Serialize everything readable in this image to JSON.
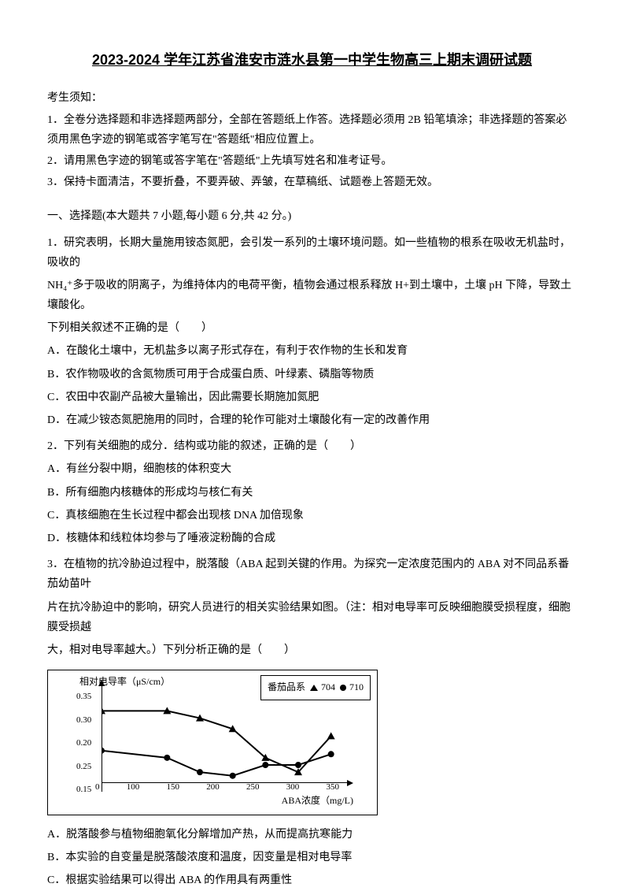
{
  "title": "2023-2024 学年江苏省淮安市涟水县第一中学生物高三上期末调研试题",
  "instructions": {
    "header": "考生须知：",
    "rule1": "1．全卷分选择题和非选择题两部分，全部在答题纸上作答。选择题必须用 2B 铅笔填涂；非选择题的答案必须用黑色字迹的钢笔或答字笔写在\"答题纸\"相应位置上。",
    "rule2": "2．请用黑色字迹的钢笔或答字笔在\"答题纸\"上先填写姓名和准考证号。",
    "rule3": "3．保持卡面清洁，不要折叠，不要弄破、弄皱，在草稿纸、试题卷上答题无效。"
  },
  "section1_header": "一、选择题(本大题共 7 小题,每小题 6 分,共 42 分。)",
  "q1": {
    "text1": "1．研究表明，长期大量施用铵态氮肥，会引发一系列的土壤环境问题。如一些植物的根系在吸收无机盐时，吸收的",
    "text2": "NH₄⁺多于吸收的阴离子，为维持体内的电荷平衡，植物会通过根系释放 H+到土壤中，土壤 pH 下降，导致土壤酸化。",
    "text3": "下列相关叙述不正确的是（　　）",
    "optA": "A．在酸化土壤中，无机盐多以离子形式存在，有利于农作物的生长和发育",
    "optB": "B．农作物吸收的含氮物质可用于合成蛋白质、叶绿素、磷脂等物质",
    "optC": "C．农田中农副产品被大量输出，因此需要长期施加氮肥",
    "optD": "D．在减少铵态氮肥施用的同时，合理的轮作可能对土壤酸化有一定的改善作用"
  },
  "q2": {
    "text": "2．下列有关细胞的成分．结构或功能的叙述，正确的是（　　）",
    "optA": "A．有丝分裂中期，细胞核的体积变大",
    "optB": "B．所有细胞内核糖体的形成均与核仁有关",
    "optC": "C．真核细胞在生长过程中都会出现核 DNA 加倍现象",
    "optD": "D．核糖体和线粒体均参与了唾液淀粉酶的合成"
  },
  "q3": {
    "text1": "3．在植物的抗冷胁迫过程中，脱落酸（ABA 起到关键的作用。为探究一定浓度范围内的 ABA 对不同品系番茄幼苗叶",
    "text2": "片在抗冷胁迫中的影响，研究人员进行的相关实验结果如图。（注：相对电导率可反映细胞膜受损程度，细胞膜受损越",
    "text3": "大，相对电导率越大。）下列分析正确的是（　　）",
    "optA": "A．脱落酸参与植物细胞氧化分解增加产热，从而提高抗寒能力",
    "optB": "B．本实验的自变量是脱落酸浓度和温度，因变量是相对电导率",
    "optC": "C．根据实验结果可以得出 ABA 的作用具有两重性"
  },
  "chart": {
    "y_label": "相对电导率（μS/cm）",
    "x_label": "ABA浓度（mg/L)",
    "legend_title": "番茄品系",
    "series1_name": "704",
    "series2_name": "710",
    "y_ticks": [
      "0.35",
      "0.30",
      "0.20",
      "0.25",
      "0.15"
    ],
    "x_ticks": [
      "0",
      "100",
      "150",
      "200",
      "250",
      "300",
      "350"
    ],
    "series_704": {
      "x": [
        0,
        100,
        150,
        200,
        250,
        300,
        350
      ],
      "y": [
        0.32,
        0.32,
        0.3,
        0.27,
        0.19,
        0.15,
        0.25
      ],
      "marker": "triangle",
      "color": "#000000"
    },
    "series_710": {
      "x": [
        0,
        100,
        150,
        200,
        250,
        300,
        350
      ],
      "y": [
        0.21,
        0.19,
        0.15,
        0.14,
        0.17,
        0.17,
        0.2
      ],
      "marker": "circle",
      "color": "#000000"
    },
    "ylim": [
      0.1,
      0.38
    ],
    "xlim": [
      0,
      360
    ],
    "line_width": 2,
    "marker_size": 7,
    "background_color": "#ffffff",
    "border_color": "#000000"
  }
}
